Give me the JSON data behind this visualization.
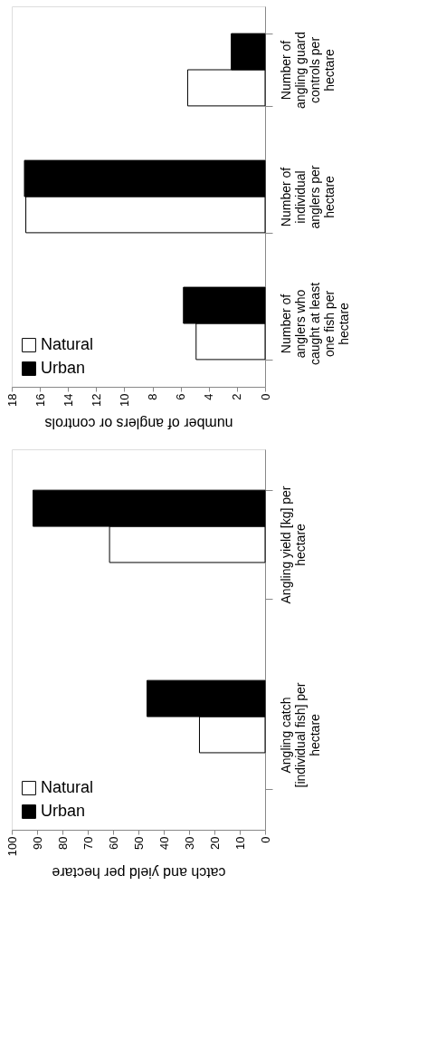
{
  "chart_data": [
    {
      "type": "bar",
      "orientation": "horizontal",
      "xlabel": "number of anglers or controls",
      "categories": [
        "Number of angling guard controls per hectare",
        "Number of individual anglers per hectare",
        "Number of anglers who caught at least one fish per hectare"
      ],
      "series": [
        {
          "name": "Natural",
          "color": "#ffffff",
          "values": [
            5.5,
            17.0,
            4.9
          ]
        },
        {
          "name": "Urban",
          "color": "#000000",
          "values": [
            2.4,
            17.1,
            5.8
          ]
        }
      ],
      "xlim": [
        18,
        0
      ],
      "xticks": [
        18,
        16,
        14,
        12,
        10,
        8,
        6,
        4,
        2,
        0
      ],
      "grid": false,
      "legend": "bottom left"
    },
    {
      "type": "bar",
      "orientation": "horizontal",
      "xlabel": "catch and yield per hectare",
      "categories": [
        "Angling yield [kg] per hectare",
        "Angling catch [individual fish] per hectare"
      ],
      "series": [
        {
          "name": "Natural",
          "color": "#ffffff",
          "values": [
            61.4,
            25.9
          ]
        },
        {
          "name": "Urban",
          "color": "#000000",
          "values": [
            91.6,
            46.6
          ]
        }
      ],
      "xlim": [
        100,
        0
      ],
      "xticks": [
        100,
        90,
        80,
        70,
        60,
        50,
        40,
        30,
        20,
        10,
        0
      ],
      "grid": false,
      "legend": "bottom left"
    }
  ]
}
